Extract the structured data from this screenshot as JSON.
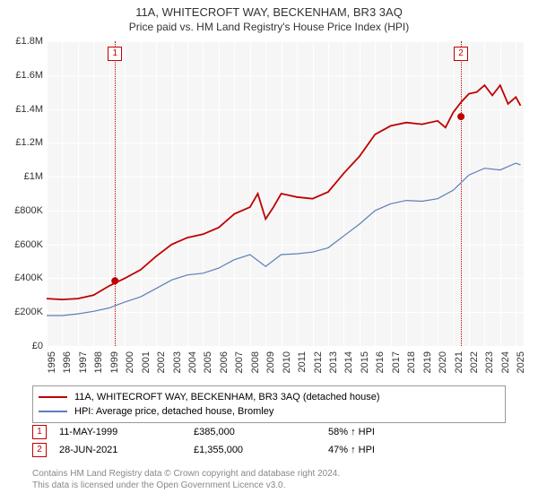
{
  "title": "11A, WHITECROFT WAY, BECKENHAM, BR3 3AQ",
  "subtitle": "Price paid vs. HM Land Registry's House Price Index (HPI)",
  "chart": {
    "type": "line",
    "background_color": "#f6f6f6",
    "grid_color": "#ffffff",
    "xlim": [
      1995,
      2025.5
    ],
    "ylim": [
      0,
      1800000
    ],
    "ytick_step": 200000,
    "yticks": [
      "£0",
      "£200K",
      "£400K",
      "£600K",
      "£800K",
      "£1M",
      "£1.2M",
      "£1.4M",
      "£1.6M",
      "£1.8M"
    ],
    "xticks": [
      "1995",
      "1996",
      "1997",
      "1998",
      "1999",
      "2000",
      "2001",
      "2002",
      "2003",
      "2004",
      "2005",
      "2006",
      "2007",
      "2008",
      "2009",
      "2010",
      "2011",
      "2012",
      "2013",
      "2014",
      "2015",
      "2016",
      "2017",
      "2018",
      "2019",
      "2020",
      "2021",
      "2022",
      "2023",
      "2024",
      "2025"
    ],
    "series": [
      {
        "name": "property",
        "color": "#c00000",
        "width": 1.8,
        "label": "11A, WHITECROFT WAY, BECKENHAM, BR3 3AQ (detached house)",
        "points": [
          [
            1995,
            280000
          ],
          [
            1996,
            275000
          ],
          [
            1997,
            280000
          ],
          [
            1998,
            300000
          ],
          [
            1999,
            355000
          ],
          [
            2000,
            400000
          ],
          [
            2001,
            450000
          ],
          [
            2002,
            530000
          ],
          [
            2003,
            600000
          ],
          [
            2004,
            640000
          ],
          [
            2005,
            660000
          ],
          [
            2006,
            700000
          ],
          [
            2007,
            780000
          ],
          [
            2008,
            820000
          ],
          [
            2008.5,
            900000
          ],
          [
            2009,
            750000
          ],
          [
            2009.5,
            820000
          ],
          [
            2010,
            900000
          ],
          [
            2011,
            880000
          ],
          [
            2012,
            870000
          ],
          [
            2013,
            910000
          ],
          [
            2014,
            1020000
          ],
          [
            2015,
            1120000
          ],
          [
            2016,
            1250000
          ],
          [
            2017,
            1300000
          ],
          [
            2018,
            1320000
          ],
          [
            2019,
            1310000
          ],
          [
            2020,
            1330000
          ],
          [
            2020.5,
            1290000
          ],
          [
            2021,
            1380000
          ],
          [
            2021.5,
            1440000
          ],
          [
            2022,
            1490000
          ],
          [
            2022.5,
            1500000
          ],
          [
            2023,
            1540000
          ],
          [
            2023.5,
            1480000
          ],
          [
            2024,
            1540000
          ],
          [
            2024.5,
            1430000
          ],
          [
            2025,
            1470000
          ],
          [
            2025.3,
            1420000
          ]
        ]
      },
      {
        "name": "hpi",
        "color": "#5b7fb8",
        "width": 1.2,
        "label": "HPI: Average price, detached house, Bromley",
        "points": [
          [
            1995,
            180000
          ],
          [
            1996,
            180000
          ],
          [
            1997,
            190000
          ],
          [
            1998,
            205000
          ],
          [
            1999,
            225000
          ],
          [
            2000,
            260000
          ],
          [
            2001,
            290000
          ],
          [
            2002,
            340000
          ],
          [
            2003,
            390000
          ],
          [
            2004,
            420000
          ],
          [
            2005,
            430000
          ],
          [
            2006,
            460000
          ],
          [
            2007,
            510000
          ],
          [
            2008,
            540000
          ],
          [
            2009,
            470000
          ],
          [
            2010,
            540000
          ],
          [
            2011,
            545000
          ],
          [
            2012,
            555000
          ],
          [
            2013,
            580000
          ],
          [
            2014,
            650000
          ],
          [
            2015,
            720000
          ],
          [
            2016,
            800000
          ],
          [
            2017,
            840000
          ],
          [
            2018,
            860000
          ],
          [
            2019,
            855000
          ],
          [
            2020,
            870000
          ],
          [
            2021,
            920000
          ],
          [
            2022,
            1010000
          ],
          [
            2023,
            1050000
          ],
          [
            2024,
            1040000
          ],
          [
            2025,
            1080000
          ],
          [
            2025.3,
            1070000
          ]
        ]
      }
    ],
    "sale_markers": [
      {
        "n": "1",
        "x": 1999.37,
        "y": 385000,
        "color": "#c00000"
      },
      {
        "n": "2",
        "x": 2021.49,
        "y": 1355000,
        "color": "#c00000"
      }
    ]
  },
  "legend": {
    "items": [
      {
        "color": "#c00000",
        "label": "11A, WHITECROFT WAY, BECKENHAM, BR3 3AQ (detached house)"
      },
      {
        "color": "#5b7fb8",
        "label": "HPI: Average price, detached house, Bromley"
      }
    ]
  },
  "sales": [
    {
      "n": "1",
      "date": "11-MAY-1999",
      "price": "£385,000",
      "vs_hpi": "58% ↑ HPI"
    },
    {
      "n": "2",
      "date": "28-JUN-2021",
      "price": "£1,355,000",
      "vs_hpi": "47% ↑ HPI"
    }
  ],
  "footer": {
    "line1": "Contains HM Land Registry data © Crown copyright and database right 2024.",
    "line2": "This data is licensed under the Open Government Licence v3.0."
  }
}
